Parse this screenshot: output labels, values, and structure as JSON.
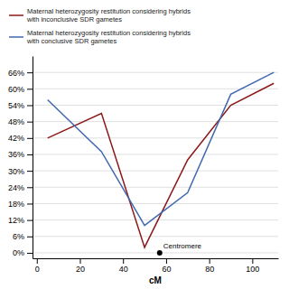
{
  "chart_data": {
    "type": "line",
    "xlabel": "cM",
    "x": [
      5,
      30,
      50,
      70,
      90,
      110
    ],
    "series": [
      {
        "name": "Maternal heterozygosity restitution considering hybrids\nwith inconclusive SDR gametes",
        "color": "#8B1A1A",
        "values": [
          0.42,
          0.51,
          0.02,
          0.34,
          0.54,
          0.62
        ]
      },
      {
        "name": "Maternal heterozygosity restitution considering hybrids\nwith conclusive SDR gametes",
        "color": "#4169B0",
        "values": [
          0.56,
          0.37,
          0.1,
          0.22,
          0.58,
          0.66
        ]
      }
    ],
    "annotations": [
      {
        "text": "Centromere",
        "x": 57,
        "y": 0.0
      }
    ],
    "xlim": [
      -2,
      112
    ],
    "ylim": [
      -0.02,
      0.72
    ],
    "xticks": [
      0,
      20,
      40,
      60,
      80,
      100
    ],
    "yticks": [
      {
        "value": 0.0,
        "label": "0%"
      },
      {
        "value": 0.06,
        "label": "6%"
      },
      {
        "value": 0.12,
        "label": "12%"
      },
      {
        "value": 0.18,
        "label": "18%"
      },
      {
        "value": 0.24,
        "label": "24%"
      },
      {
        "value": 0.3,
        "label": "30%"
      },
      {
        "value": 0.36,
        "label": "36%"
      },
      {
        "value": 0.42,
        "label": "42%"
      },
      {
        "value": 0.48,
        "label": "48%"
      },
      {
        "value": 0.54,
        "label": "54%"
      },
      {
        "value": 0.6,
        "label": "60%"
      },
      {
        "value": 0.66,
        "label": "66%"
      }
    ],
    "grid": true,
    "legend": "top"
  }
}
